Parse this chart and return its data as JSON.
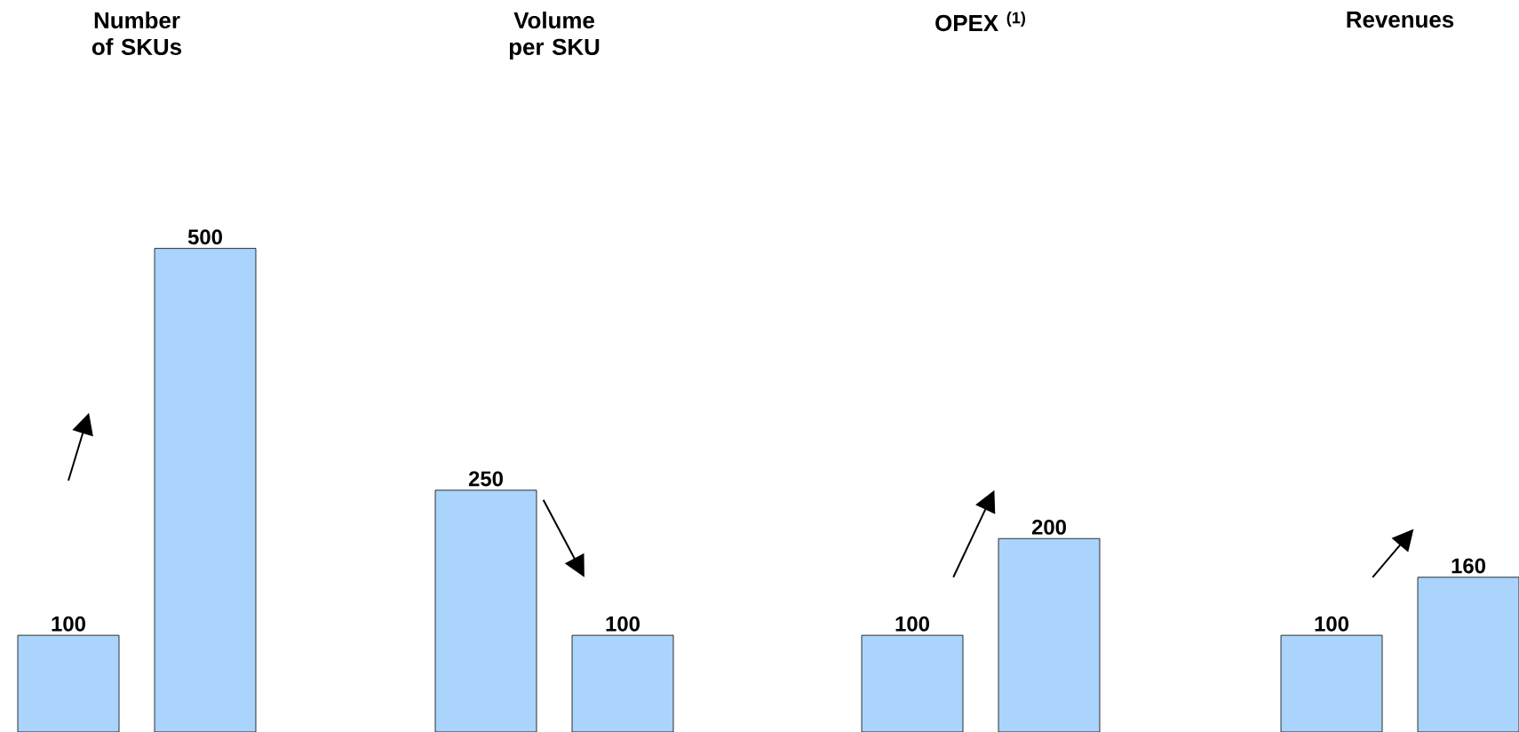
{
  "chart_data": [
    {
      "type": "bar",
      "title": "Number of SKUs",
      "categories": [
        null,
        null
      ],
      "values": [
        100,
        500
      ],
      "color": "#aad4fb",
      "data_labels": true
    },
    {
      "type": "bar",
      "title": "Volume per SKU",
      "categories": [
        null,
        null
      ],
      "values": [
        250,
        100
      ],
      "color": "#aad4fb",
      "data_labels": true
    },
    {
      "type": "bar",
      "title": "OPEX $^{(1)}$",
      "categories": [
        null,
        null
      ],
      "values": [
        100,
        200
      ],
      "color": "#aad4fb",
      "data_labels": true
    },
    {
      "type": "bar",
      "title": "Revenues",
      "categories": [
        null,
        null
      ],
      "values": [
        100,
        160
      ],
      "color": "#aad4fb",
      "data_labels": true
    }
  ]
}
